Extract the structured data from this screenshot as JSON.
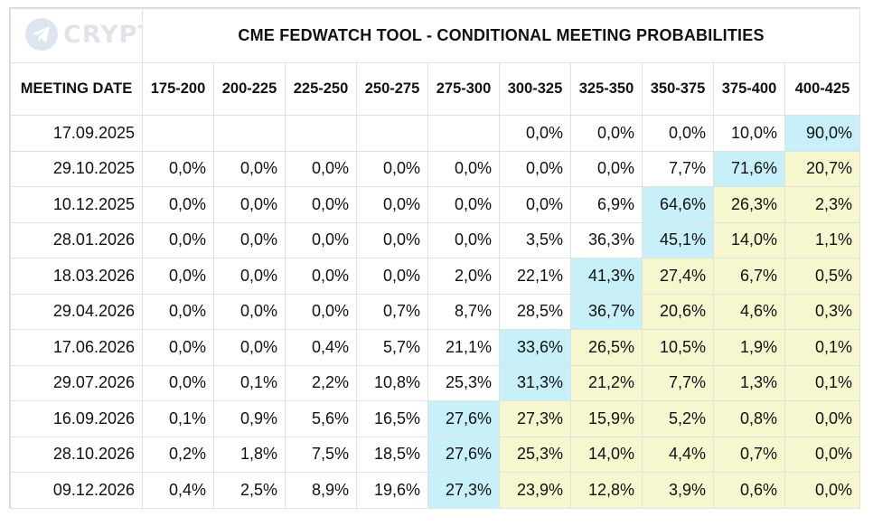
{
  "watermark": {
    "text": "CRYPTO_HD",
    "icon": "telegram-plane-icon"
  },
  "title": "CME FEDWATCH TOOL - CONDITIONAL MEETING PROBABILITIES",
  "colors": {
    "max_highlight": "#c7f0f9",
    "above_highlight": "#f6f7cf"
  },
  "date_header": "MEETING DATE",
  "columns": [
    "175-200",
    "200-225",
    "225-250",
    "250-275",
    "275-300",
    "300-325",
    "325-350",
    "350-375",
    "375-400",
    "400-425"
  ],
  "rows": [
    {
      "date": "17.09.2025",
      "values": [
        "",
        "",
        "",
        "",
        "",
        "0,0%",
        "0,0%",
        "0,0%",
        "10,0%",
        "90,0%"
      ],
      "max_index": 9
    },
    {
      "date": "29.10.2025",
      "values": [
        "0,0%",
        "0,0%",
        "0,0%",
        "0,0%",
        "0,0%",
        "0,0%",
        "0,0%",
        "7,7%",
        "71,6%",
        "20,7%"
      ],
      "max_index": 8
    },
    {
      "date": "10.12.2025",
      "values": [
        "0,0%",
        "0,0%",
        "0,0%",
        "0,0%",
        "0,0%",
        "0,0%",
        "6,9%",
        "64,6%",
        "26,3%",
        "2,3%"
      ],
      "max_index": 7
    },
    {
      "date": "28.01.2026",
      "values": [
        "0,0%",
        "0,0%",
        "0,0%",
        "0,0%",
        "0,0%",
        "3,5%",
        "36,3%",
        "45,1%",
        "14,0%",
        "1,1%"
      ],
      "max_index": 7
    },
    {
      "date": "18.03.2026",
      "values": [
        "0,0%",
        "0,0%",
        "0,0%",
        "0,0%",
        "2,0%",
        "22,1%",
        "41,3%",
        "27,4%",
        "6,7%",
        "0,5%"
      ],
      "max_index": 6
    },
    {
      "date": "29.04.2026",
      "values": [
        "0,0%",
        "0,0%",
        "0,0%",
        "0,7%",
        "8,7%",
        "28,5%",
        "36,7%",
        "20,6%",
        "4,6%",
        "0,3%"
      ],
      "max_index": 6
    },
    {
      "date": "17.06.2026",
      "values": [
        "0,0%",
        "0,0%",
        "0,4%",
        "5,7%",
        "21,1%",
        "33,6%",
        "26,5%",
        "10,5%",
        "1,9%",
        "0,1%"
      ],
      "max_index": 5
    },
    {
      "date": "29.07.2026",
      "values": [
        "0,0%",
        "0,1%",
        "2,2%",
        "10,8%",
        "25,3%",
        "31,3%",
        "21,2%",
        "7,7%",
        "1,3%",
        "0,1%"
      ],
      "max_index": 5
    },
    {
      "date": "16.09.2026",
      "values": [
        "0,1%",
        "0,9%",
        "5,6%",
        "16,5%",
        "27,6%",
        "27,3%",
        "15,9%",
        "5,2%",
        "0,8%",
        "0,0%"
      ],
      "max_index": 4
    },
    {
      "date": "28.10.2026",
      "values": [
        "0,2%",
        "1,8%",
        "7,5%",
        "18,5%",
        "27,6%",
        "25,3%",
        "14,0%",
        "4,4%",
        "0,7%",
        "0,0%"
      ],
      "max_index": 4
    },
    {
      "date": "09.12.2026",
      "values": [
        "0,4%",
        "2,5%",
        "8,9%",
        "19,6%",
        "27,3%",
        "23,9%",
        "12,8%",
        "3,9%",
        "0,6%",
        "0,0%"
      ],
      "max_index": 4
    }
  ]
}
